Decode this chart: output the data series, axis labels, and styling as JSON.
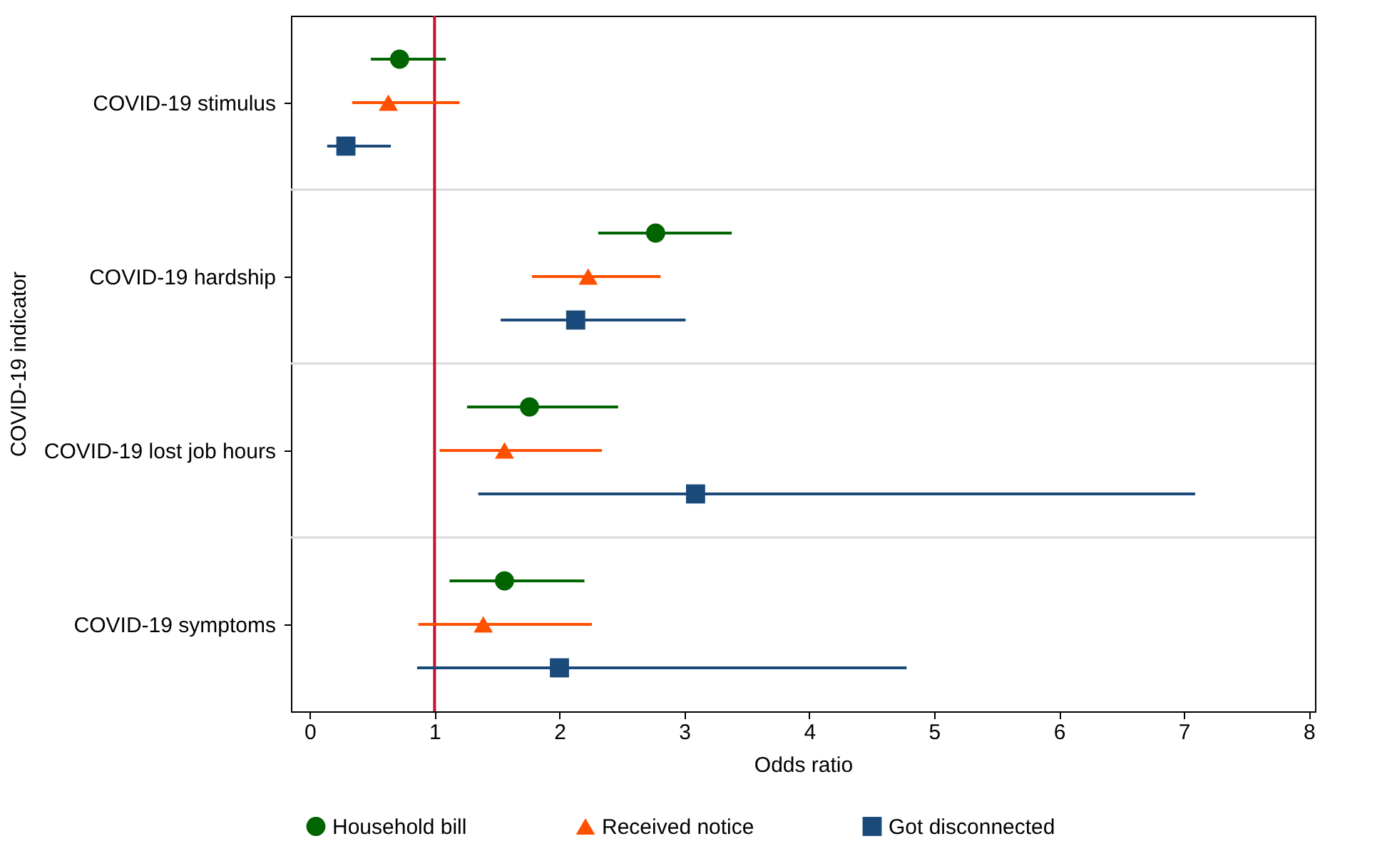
{
  "chart_data": {
    "type": "scatter",
    "orientation": "horizontal",
    "xlabel": "Odds ratio",
    "ylabel": "COVID-19 indicator",
    "categories": [
      "COVID-19 stimulus",
      "COVID-19 hardship",
      "COVID-19 lost job hours",
      "COVID-19 symptoms"
    ],
    "series": [
      {
        "name": "Household bill",
        "color": "#006400",
        "marker": "circle",
        "values": [
          0.72,
          2.77,
          1.76,
          1.56
        ],
        "errors": [
          [
            0.49,
            1.09
          ],
          [
            2.31,
            3.38
          ],
          [
            1.26,
            2.47
          ],
          [
            1.12,
            2.2
          ]
        ]
      },
      {
        "name": "Received notice",
        "color": "#ff5000",
        "marker": "triangle",
        "values": [
          0.63,
          2.23,
          1.56,
          1.39
        ],
        "errors": [
          [
            0.34,
            1.2
          ],
          [
            1.78,
            2.81
          ],
          [
            1.04,
            2.34
          ],
          [
            0.87,
            2.26
          ]
        ]
      },
      {
        "name": "Got disconnected",
        "color": "#1a4a7a",
        "marker": "square",
        "values": [
          0.29,
          2.13,
          3.09,
          2.0
        ],
        "errors": [
          [
            0.14,
            0.65
          ],
          [
            1.53,
            3.01
          ],
          [
            1.35,
            7.09
          ],
          [
            0.86,
            4.78
          ]
        ]
      }
    ],
    "xlim": [
      -0.15,
      8.05
    ],
    "xticks": [
      0,
      1,
      2,
      3,
      4,
      5,
      6,
      7,
      8
    ],
    "ref_lines": [
      {
        "axis": "x",
        "value": 1,
        "color": "#c8102e"
      }
    ],
    "grid": "y",
    "legend": "bottom"
  }
}
